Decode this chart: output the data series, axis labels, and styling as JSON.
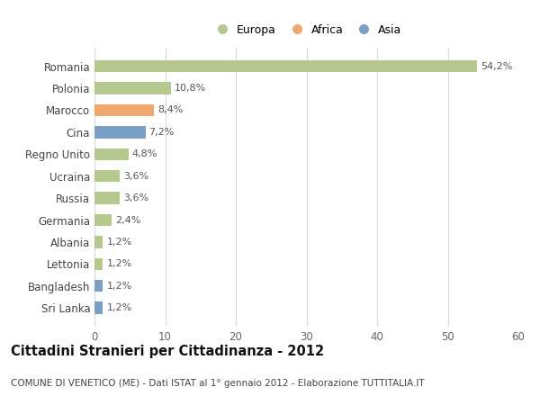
{
  "categories": [
    "Romania",
    "Polonia",
    "Marocco",
    "Cina",
    "Regno Unito",
    "Ucraina",
    "Russia",
    "Germania",
    "Albania",
    "Lettonia",
    "Bangladesh",
    "Sri Lanka"
  ],
  "values": [
    54.2,
    10.8,
    8.4,
    7.2,
    4.8,
    3.6,
    3.6,
    2.4,
    1.2,
    1.2,
    1.2,
    1.2
  ],
  "labels": [
    "54,2%",
    "10,8%",
    "8,4%",
    "7,2%",
    "4,8%",
    "3,6%",
    "3,6%",
    "2,4%",
    "1,2%",
    "1,2%",
    "1,2%",
    "1,2%"
  ],
  "colors": [
    "#b5c98e",
    "#b5c98e",
    "#f0a870",
    "#7b9fc7",
    "#b5c98e",
    "#b5c98e",
    "#b5c98e",
    "#b5c98e",
    "#b5c98e",
    "#b5c98e",
    "#7b9fc7",
    "#7b9fc7"
  ],
  "legend_labels": [
    "Europa",
    "Africa",
    "Asia"
  ],
  "legend_colors": [
    "#b5c98e",
    "#f0a870",
    "#7b9fc7"
  ],
  "title": "Cittadini Stranieri per Cittadinanza - 2012",
  "subtitle": "COMUNE DI VENETICO (ME) - Dati ISTAT al 1° gennaio 2012 - Elaborazione TUTTITALIA.IT",
  "xlim": [
    0,
    60
  ],
  "xticks": [
    0,
    10,
    20,
    30,
    40,
    50,
    60
  ],
  "background_color": "#ffffff",
  "grid_color": "#d8d8d8",
  "bar_height": 0.55
}
